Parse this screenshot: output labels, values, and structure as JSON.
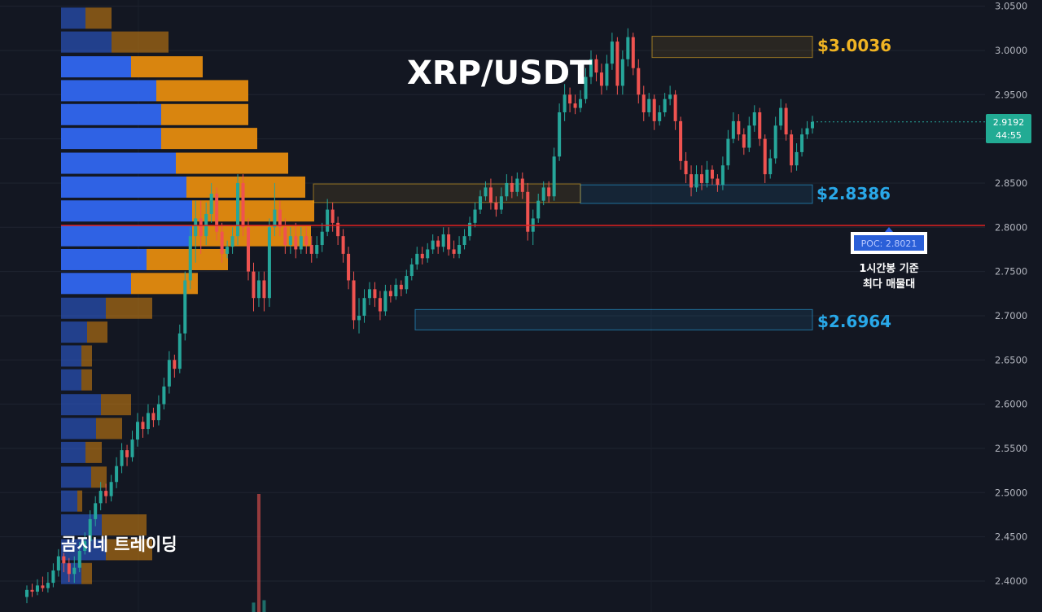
{
  "chart_title": "XRP/USDT",
  "watermark": "곰지네 트레이딩",
  "colors": {
    "background": "#131722",
    "up": "#26a69a",
    "down": "#ef5350",
    "volume_buy": "#2f62e4",
    "volume_sell": "#d9850f",
    "poc_line": "#e02020",
    "resistance": "#f0b423",
    "support": "#29a8e8"
  },
  "price_axis": {
    "ticks": [
      "3.0500",
      "3.0000",
      "2.9500",
      "2.9000",
      "2.8500",
      "2.8000",
      "2.7500",
      "2.7000",
      "2.6500",
      "2.6000",
      "2.5500",
      "2.5000",
      "2.4500",
      "2.4000"
    ],
    "range": [
      2.365,
      3.057
    ],
    "current_price": "2.9192",
    "countdown": "44:55",
    "current_price_value": 2.9192
  },
  "zones": [
    {
      "label": "$3.0036",
      "low": 2.992,
      "high": 3.016,
      "color": "#f0b423"
    },
    {
      "label": "$2.8386",
      "low": 2.827,
      "high": 2.848,
      "color": "#29a8e8"
    },
    {
      "label": "$2.6964",
      "low": 2.684,
      "high": 2.707,
      "color": "#29a8e8"
    }
  ],
  "extra_zone": {
    "low": 2.828,
    "high": 2.849
  },
  "poc": {
    "label": "POC: 2.8021",
    "value": 2.8021,
    "caption_line1": "1시간봉 기준",
    "caption_line2": "최다 매물대"
  },
  "chart_data": {
    "type": "candlestick",
    "title": "XRP/USDT",
    "y_range": [
      2.365,
      3.057
    ],
    "grid": true,
    "candles": [
      [
        2.382,
        2.39,
        2.375,
        2.395
      ],
      [
        2.39,
        2.388,
        2.382,
        2.397
      ],
      [
        2.388,
        2.395,
        2.384,
        2.402
      ],
      [
        2.395,
        2.392,
        2.388,
        2.405
      ],
      [
        2.392,
        2.398,
        2.387,
        2.41
      ],
      [
        2.398,
        2.412,
        2.393,
        2.42
      ],
      [
        2.412,
        2.428,
        2.405,
        2.436
      ],
      [
        2.428,
        2.42,
        2.41,
        2.432
      ],
      [
        2.42,
        2.408,
        2.399,
        2.426
      ],
      [
        2.408,
        2.415,
        2.398,
        2.428
      ],
      [
        2.415,
        2.434,
        2.41,
        2.444
      ],
      [
        2.434,
        2.445,
        2.43,
        2.455
      ],
      [
        2.445,
        2.47,
        2.44,
        2.48
      ],
      [
        2.47,
        2.488,
        2.462,
        2.496
      ],
      [
        2.488,
        2.502,
        2.48,
        2.512
      ],
      [
        2.502,
        2.496,
        2.488,
        2.51
      ],
      [
        2.496,
        2.512,
        2.49,
        2.52
      ],
      [
        2.512,
        2.53,
        2.505,
        2.54
      ],
      [
        2.53,
        2.548,
        2.522,
        2.556
      ],
      [
        2.548,
        2.54,
        2.53,
        2.554
      ],
      [
        2.54,
        2.56,
        2.535,
        2.57
      ],
      [
        2.56,
        2.58,
        2.552,
        2.59
      ],
      [
        2.58,
        2.572,
        2.562,
        2.586
      ],
      [
        2.572,
        2.59,
        2.566,
        2.6
      ],
      [
        2.59,
        2.582,
        2.574,
        2.596
      ],
      [
        2.582,
        2.6,
        2.576,
        2.61
      ],
      [
        2.6,
        2.62,
        2.594,
        2.63
      ],
      [
        2.62,
        2.65,
        2.612,
        2.66
      ],
      [
        2.65,
        2.64,
        2.63,
        2.656
      ],
      [
        2.64,
        2.68,
        2.635,
        2.69
      ],
      [
        2.68,
        2.74,
        2.672,
        2.75
      ],
      [
        2.74,
        2.79,
        2.73,
        2.8
      ],
      [
        2.79,
        2.81,
        2.76,
        2.83
      ],
      [
        2.81,
        2.79,
        2.77,
        2.83
      ],
      [
        2.79,
        2.815,
        2.78,
        2.828
      ],
      [
        2.815,
        2.838,
        2.805,
        2.85
      ],
      [
        2.838,
        2.795,
        2.785,
        2.845
      ],
      [
        2.795,
        2.77,
        2.76,
        2.805
      ],
      [
        2.77,
        2.778,
        2.765,
        2.785
      ],
      [
        2.778,
        2.79,
        2.77,
        2.8
      ],
      [
        2.79,
        2.85,
        2.78,
        2.86
      ],
      [
        2.85,
        2.8,
        2.79,
        2.86
      ],
      [
        2.8,
        2.75,
        2.74,
        2.81
      ],
      [
        2.75,
        2.72,
        2.705,
        2.76
      ],
      [
        2.72,
        2.74,
        2.71,
        2.75
      ],
      [
        2.74,
        2.72,
        2.705,
        2.75
      ],
      [
        2.72,
        2.8,
        2.71,
        2.81
      ],
      [
        2.8,
        2.82,
        2.79,
        2.85
      ],
      [
        2.82,
        2.8,
        2.79,
        2.83
      ],
      [
        2.8,
        2.78,
        2.77,
        2.81
      ],
      [
        2.78,
        2.79,
        2.77,
        2.8
      ],
      [
        2.79,
        2.775,
        2.765,
        2.805
      ],
      [
        2.775,
        2.79,
        2.77,
        2.8
      ],
      [
        2.79,
        2.78,
        2.77,
        2.8
      ],
      [
        2.78,
        2.77,
        2.76,
        2.79
      ],
      [
        2.77,
        2.78,
        2.765,
        2.79
      ],
      [
        2.78,
        2.795,
        2.772,
        2.805
      ],
      [
        2.795,
        2.82,
        2.79,
        2.832
      ],
      [
        2.82,
        2.805,
        2.795,
        2.828
      ],
      [
        2.805,
        2.79,
        2.78,
        2.812
      ],
      [
        2.79,
        2.77,
        2.76,
        2.798
      ],
      [
        2.77,
        2.74,
        2.73,
        2.778
      ],
      [
        2.74,
        2.695,
        2.685,
        2.75
      ],
      [
        2.695,
        2.7,
        2.68,
        2.72
      ],
      [
        2.7,
        2.72,
        2.692,
        2.73
      ],
      [
        2.72,
        2.73,
        2.712,
        2.738
      ],
      [
        2.73,
        2.72,
        2.71,
        2.738
      ],
      [
        2.72,
        2.705,
        2.695,
        2.728
      ],
      [
        2.705,
        2.728,
        2.7,
        2.735
      ],
      [
        2.728,
        2.722,
        2.715,
        2.735
      ],
      [
        2.722,
        2.735,
        2.718,
        2.742
      ],
      [
        2.735,
        2.73,
        2.722,
        2.74
      ],
      [
        2.73,
        2.745,
        2.725,
        2.752
      ],
      [
        2.745,
        2.758,
        2.74,
        2.765
      ],
      [
        2.758,
        2.77,
        2.752,
        2.778
      ],
      [
        2.77,
        2.765,
        2.758,
        2.778
      ],
      [
        2.765,
        2.775,
        2.76,
        2.782
      ],
      [
        2.775,
        2.785,
        2.77,
        2.792
      ],
      [
        2.785,
        2.778,
        2.77,
        2.79
      ],
      [
        2.778,
        2.792,
        2.772,
        2.8
      ],
      [
        2.792,
        2.775,
        2.768,
        2.8
      ],
      [
        2.775,
        2.77,
        2.765,
        2.785
      ],
      [
        2.77,
        2.78,
        2.765,
        2.79
      ],
      [
        2.78,
        2.79,
        2.775,
        2.798
      ],
      [
        2.79,
        2.805,
        2.785,
        2.812
      ],
      [
        2.805,
        2.82,
        2.8,
        2.828
      ],
      [
        2.82,
        2.835,
        2.815,
        2.842
      ],
      [
        2.835,
        2.845,
        2.83,
        2.852
      ],
      [
        2.845,
        2.828,
        2.82,
        2.855
      ],
      [
        2.828,
        2.82,
        2.812,
        2.835
      ],
      [
        2.82,
        2.835,
        2.815,
        2.845
      ],
      [
        2.835,
        2.85,
        2.83,
        2.86
      ],
      [
        2.85,
        2.84,
        2.833,
        2.858
      ],
      [
        2.84,
        2.855,
        2.835,
        2.862
      ],
      [
        2.855,
        2.84,
        2.832,
        2.862
      ],
      [
        2.84,
        2.795,
        2.785,
        2.85
      ],
      [
        2.795,
        2.81,
        2.78,
        2.82
      ],
      [
        2.81,
        2.83,
        2.805,
        2.838
      ],
      [
        2.83,
        2.845,
        2.825,
        2.852
      ],
      [
        2.845,
        2.835,
        2.828,
        2.852
      ],
      [
        2.835,
        2.88,
        2.83,
        2.89
      ],
      [
        2.88,
        2.93,
        2.875,
        2.94
      ],
      [
        2.93,
        2.95,
        2.92,
        2.962
      ],
      [
        2.95,
        2.94,
        2.93,
        2.958
      ],
      [
        2.94,
        2.935,
        2.928,
        2.95
      ],
      [
        2.935,
        2.945,
        2.93,
        2.955
      ],
      [
        2.945,
        2.97,
        2.94,
        2.98
      ],
      [
        2.97,
        2.99,
        2.962,
        3.0
      ],
      [
        2.99,
        2.975,
        2.965,
        2.995
      ],
      [
        2.975,
        2.96,
        2.95,
        2.985
      ],
      [
        2.96,
        2.985,
        2.955,
        2.995
      ],
      [
        2.985,
        3.01,
        2.978,
        3.02
      ],
      [
        3.01,
        2.96,
        2.95,
        3.015
      ],
      [
        2.96,
        2.99,
        2.95,
        3.0
      ],
      [
        2.99,
        3.015,
        2.982,
        3.025
      ],
      [
        3.015,
        2.98,
        2.972,
        3.02
      ],
      [
        2.98,
        2.95,
        2.94,
        2.99
      ],
      [
        2.95,
        2.93,
        2.92,
        2.96
      ],
      [
        2.93,
        2.945,
        2.925,
        2.952
      ],
      [
        2.945,
        2.92,
        2.91,
        2.95
      ],
      [
        2.92,
        2.93,
        2.915,
        2.938
      ],
      [
        2.93,
        2.945,
        2.925,
        2.952
      ],
      [
        2.945,
        2.95,
        2.938,
        2.96
      ],
      [
        2.95,
        2.92,
        2.91,
        2.955
      ],
      [
        2.92,
        2.875,
        2.865,
        2.925
      ],
      [
        2.875,
        2.86,
        2.85,
        2.885
      ],
      [
        2.86,
        2.845,
        2.835,
        2.87
      ],
      [
        2.845,
        2.86,
        2.84,
        2.87
      ],
      [
        2.86,
        2.85,
        2.842,
        2.87
      ],
      [
        2.85,
        2.865,
        2.845,
        2.875
      ],
      [
        2.865,
        2.855,
        2.848,
        2.87
      ],
      [
        2.855,
        2.848,
        2.84,
        2.86
      ],
      [
        2.848,
        2.87,
        2.842,
        2.88
      ],
      [
        2.87,
        2.9,
        2.865,
        2.91
      ],
      [
        2.9,
        2.92,
        2.895,
        2.93
      ],
      [
        2.92,
        2.905,
        2.898,
        2.928
      ],
      [
        2.905,
        2.89,
        2.882,
        2.912
      ],
      [
        2.89,
        2.915,
        2.885,
        2.925
      ],
      [
        2.915,
        2.93,
        2.908,
        2.938
      ],
      [
        2.93,
        2.9,
        2.892,
        2.935
      ],
      [
        2.9,
        2.86,
        2.85,
        2.905
      ],
      [
        2.86,
        2.878,
        2.855,
        2.888
      ],
      [
        2.878,
        2.915,
        2.872,
        2.925
      ],
      [
        2.915,
        2.935,
        2.91,
        2.945
      ],
      [
        2.935,
        2.905,
        2.898,
        2.94
      ],
      [
        2.905,
        2.87,
        2.862,
        2.91
      ],
      [
        2.87,
        2.885,
        2.864,
        2.895
      ],
      [
        2.885,
        2.905,
        2.88,
        2.912
      ],
      [
        2.905,
        2.912,
        2.9,
        2.92
      ],
      [
        2.912,
        2.9192,
        2.906,
        2.926
      ]
    ],
    "volume_profile": [
      {
        "price": 3.036,
        "buy": 30,
        "sell": 32
      },
      {
        "price": 3.009,
        "buy": 62,
        "sell": 70
      },
      {
        "price": 2.981,
        "buy": 86,
        "sell": 88
      },
      {
        "price": 2.954,
        "buy": 117,
        "sell": 113
      },
      {
        "price": 2.927,
        "buy": 123,
        "sell": 107
      },
      {
        "price": 2.9,
        "buy": 123,
        "sell": 118
      },
      {
        "price": 2.872,
        "buy": 141,
        "sell": 138
      },
      {
        "price": 2.845,
        "buy": 154,
        "sell": 146
      },
      {
        "price": 2.818,
        "buy": 161,
        "sell": 150
      },
      {
        "price": 2.79,
        "buy": 161,
        "sell": 146
      },
      {
        "price": 2.763,
        "buy": 105,
        "sell": 100
      },
      {
        "price": 2.736,
        "buy": 86,
        "sell": 82
      },
      {
        "price": 2.708,
        "buy": 55,
        "sell": 57
      },
      {
        "price": 2.681,
        "buy": 32,
        "sell": 25
      },
      {
        "price": 2.654,
        "buy": 25,
        "sell": 13
      },
      {
        "price": 2.627,
        "buy": 25,
        "sell": 13
      },
      {
        "price": 2.599,
        "buy": 49,
        "sell": 37
      },
      {
        "price": 2.572,
        "buy": 43,
        "sell": 32
      },
      {
        "price": 2.545,
        "buy": 30,
        "sell": 20
      },
      {
        "price": 2.517,
        "buy": 37,
        "sell": 19
      },
      {
        "price": 2.49,
        "buy": 20,
        "sell": 6
      },
      {
        "price": 2.463,
        "buy": 50,
        "sell": 55
      },
      {
        "price": 2.435,
        "buy": 55,
        "sell": 57
      },
      {
        "price": 2.408,
        "buy": 25,
        "sell": 13
      }
    ],
    "volume_bars": [
      {
        "index": 44,
        "value": 1.0,
        "dir": "down"
      },
      {
        "index": 43,
        "value": 0.08,
        "dir": "up"
      },
      {
        "index": 45,
        "value": 0.1,
        "dir": "up"
      }
    ]
  }
}
